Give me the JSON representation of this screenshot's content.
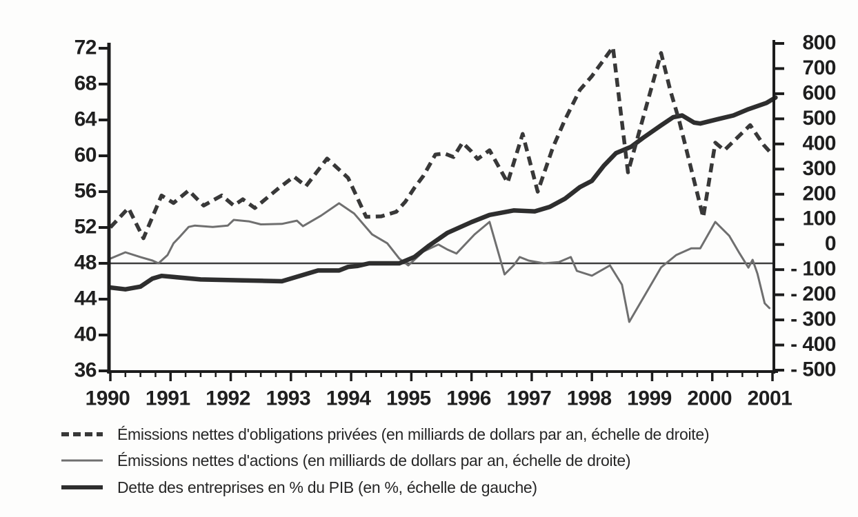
{
  "chart_data": {
    "type": "line",
    "title": "",
    "x_axis": {
      "min": 1990,
      "max": 2001,
      "tick_labels": [
        "1990",
        "1991",
        "1992",
        "1993",
        "1994",
        "1995",
        "1996",
        "1997",
        "1998",
        "1999",
        "2000",
        "2001"
      ],
      "minor_ticks_per_year": 4
    },
    "y_axis_left": {
      "min": 36,
      "max": 72,
      "tick_values": [
        72,
        68,
        64,
        60,
        56,
        52,
        48,
        44,
        40,
        36
      ],
      "tick_labels": [
        "72",
        "68",
        "64",
        "60",
        "56",
        "52",
        "48",
        "44",
        "40",
        "36"
      ]
    },
    "y_axis_right": {
      "min": -500,
      "max": 800,
      "tick_values": [
        800,
        700,
        600,
        500,
        400,
        300,
        200,
        100,
        0,
        -100,
        -200,
        -300,
        -400,
        -500
      ],
      "tick_labels": [
        "800",
        "700",
        "600",
        "500",
        "400",
        "300",
        "200",
        "100",
        "0",
        "- 100",
        "- 200",
        "- 300",
        "- 400",
        "- 500"
      ]
    },
    "reference_line": {
      "axis": "left",
      "value": 48,
      "color": "#3e3e3e"
    },
    "axis_color": "#1c1c1c",
    "legend_position": "bottom-left",
    "series": [
      {
        "id": "obligations",
        "label": "Émissions nettes d'obligations privées (en milliards de dollars par an, échelle de droite)",
        "axis": "right",
        "style": "dashed",
        "color": "#383838",
        "width": 5.5,
        "dash": [
          13,
          8
        ],
        "points": [
          [
            1990.0,
            68
          ],
          [
            1990.3,
            145
          ],
          [
            1990.55,
            25
          ],
          [
            1990.85,
            195
          ],
          [
            1991.05,
            165
          ],
          [
            1991.3,
            215
          ],
          [
            1991.55,
            155
          ],
          [
            1991.85,
            195
          ],
          [
            1992.05,
            155
          ],
          [
            1992.2,
            180
          ],
          [
            1992.4,
            145
          ],
          [
            1992.55,
            175
          ],
          [
            1992.8,
            225
          ],
          [
            1993.05,
            270
          ],
          [
            1993.25,
            232
          ],
          [
            1993.6,
            342
          ],
          [
            1993.95,
            265
          ],
          [
            1994.25,
            110
          ],
          [
            1994.5,
            112
          ],
          [
            1994.75,
            130
          ],
          [
            1994.9,
            170
          ],
          [
            1995.05,
            225
          ],
          [
            1995.2,
            273
          ],
          [
            1995.4,
            358
          ],
          [
            1995.55,
            362
          ],
          [
            1995.7,
            348
          ],
          [
            1995.85,
            405
          ],
          [
            1996.0,
            370
          ],
          [
            1996.1,
            340
          ],
          [
            1996.3,
            375
          ],
          [
            1996.6,
            246
          ],
          [
            1996.85,
            440
          ],
          [
            1997.1,
            210
          ],
          [
            1997.35,
            385
          ],
          [
            1997.55,
            495
          ],
          [
            1997.8,
            615
          ],
          [
            1998.0,
            670
          ],
          [
            1998.35,
            785
          ],
          [
            1998.6,
            287
          ],
          [
            1999.15,
            762
          ],
          [
            1999.3,
            616
          ],
          [
            1999.45,
            493
          ],
          [
            1999.65,
            300
          ],
          [
            1999.85,
            108
          ],
          [
            2000.05,
            405
          ],
          [
            2000.2,
            375
          ],
          [
            2000.63,
            475
          ],
          [
            2000.85,
            397
          ],
          [
            2001.0,
            357
          ]
        ]
      },
      {
        "id": "actions",
        "label": "Émissions nettes d'actions (en milliards de dollars par an, échelle de droite)",
        "axis": "right",
        "style": "solid-thin",
        "color": "#6f6f6f",
        "width": 3,
        "points": [
          [
            1990.0,
            -56
          ],
          [
            1990.25,
            -31
          ],
          [
            1990.5,
            -50
          ],
          [
            1990.7,
            -64
          ],
          [
            1990.8,
            -75
          ],
          [
            1990.95,
            -42
          ],
          [
            1991.05,
            5
          ],
          [
            1991.15,
            30
          ],
          [
            1991.3,
            70
          ],
          [
            1991.4,
            75
          ],
          [
            1991.7,
            70
          ],
          [
            1991.95,
            75
          ],
          [
            1992.05,
            98
          ],
          [
            1992.3,
            92
          ],
          [
            1992.5,
            80
          ],
          [
            1992.85,
            82
          ],
          [
            1993.1,
            95
          ],
          [
            1993.2,
            73
          ],
          [
            1993.5,
            115
          ],
          [
            1993.8,
            164
          ],
          [
            1994.05,
            123
          ],
          [
            1994.35,
            40
          ],
          [
            1994.6,
            5
          ],
          [
            1994.8,
            -56
          ],
          [
            1994.95,
            -83
          ],
          [
            1995.2,
            -28
          ],
          [
            1995.45,
            0
          ],
          [
            1995.6,
            -20
          ],
          [
            1995.75,
            -36
          ],
          [
            1996.05,
            40
          ],
          [
            1996.3,
            90
          ],
          [
            1996.55,
            -119
          ],
          [
            1996.7,
            -83
          ],
          [
            1996.8,
            -50
          ],
          [
            1996.95,
            -64
          ],
          [
            1997.2,
            -75
          ],
          [
            1997.45,
            -70
          ],
          [
            1997.65,
            -50
          ],
          [
            1997.75,
            -105
          ],
          [
            1998.0,
            -124
          ],
          [
            1998.3,
            -83
          ],
          [
            1998.5,
            -160
          ],
          [
            1998.62,
            -308
          ],
          [
            1999.15,
            -91
          ],
          [
            1999.4,
            -42
          ],
          [
            1999.65,
            -15
          ],
          [
            1999.8,
            -15
          ],
          [
            2000.05,
            90
          ],
          [
            2000.28,
            35
          ],
          [
            2000.45,
            -34
          ],
          [
            2000.6,
            -92
          ],
          [
            2000.67,
            -61
          ],
          [
            2000.75,
            -116
          ],
          [
            2000.87,
            -234
          ],
          [
            2000.95,
            -253
          ]
        ]
      },
      {
        "id": "dette",
        "label": "Dette des entreprises en % du PIB (en %, échelle de gauche)",
        "axis": "left",
        "style": "solid-thick",
        "color": "#2e2e2e",
        "width": 6.5,
        "points": [
          [
            1990.0,
            45.3
          ],
          [
            1990.25,
            45.1
          ],
          [
            1990.5,
            45.4
          ],
          [
            1990.7,
            46.3
          ],
          [
            1990.85,
            46.6
          ],
          [
            1991.5,
            46.2
          ],
          [
            1992.2,
            46.1
          ],
          [
            1992.85,
            46.0
          ],
          [
            1993.1,
            46.5
          ],
          [
            1993.45,
            47.2
          ],
          [
            1993.8,
            47.2
          ],
          [
            1993.95,
            47.6
          ],
          [
            1994.1,
            47.7
          ],
          [
            1994.3,
            48.0
          ],
          [
            1994.8,
            48.0
          ],
          [
            1995.05,
            48.7
          ],
          [
            1995.3,
            50.0
          ],
          [
            1995.6,
            51.4
          ],
          [
            1996.0,
            52.6
          ],
          [
            1996.3,
            53.4
          ],
          [
            1996.7,
            53.9
          ],
          [
            1997.05,
            53.8
          ],
          [
            1997.3,
            54.3
          ],
          [
            1997.55,
            55.2
          ],
          [
            1997.8,
            56.5
          ],
          [
            1998.0,
            57.2
          ],
          [
            1998.2,
            58.9
          ],
          [
            1998.4,
            60.3
          ],
          [
            1998.65,
            61.0
          ],
          [
            1998.85,
            62.0
          ],
          [
            1999.15,
            63.4
          ],
          [
            1999.35,
            64.3
          ],
          [
            1999.5,
            64.5
          ],
          [
            1999.7,
            63.7
          ],
          [
            1999.8,
            63.6
          ],
          [
            2000.1,
            64.1
          ],
          [
            2000.35,
            64.5
          ],
          [
            2000.6,
            65.2
          ],
          [
            2000.9,
            65.9
          ],
          [
            2001.05,
            66.5
          ]
        ]
      }
    ]
  }
}
